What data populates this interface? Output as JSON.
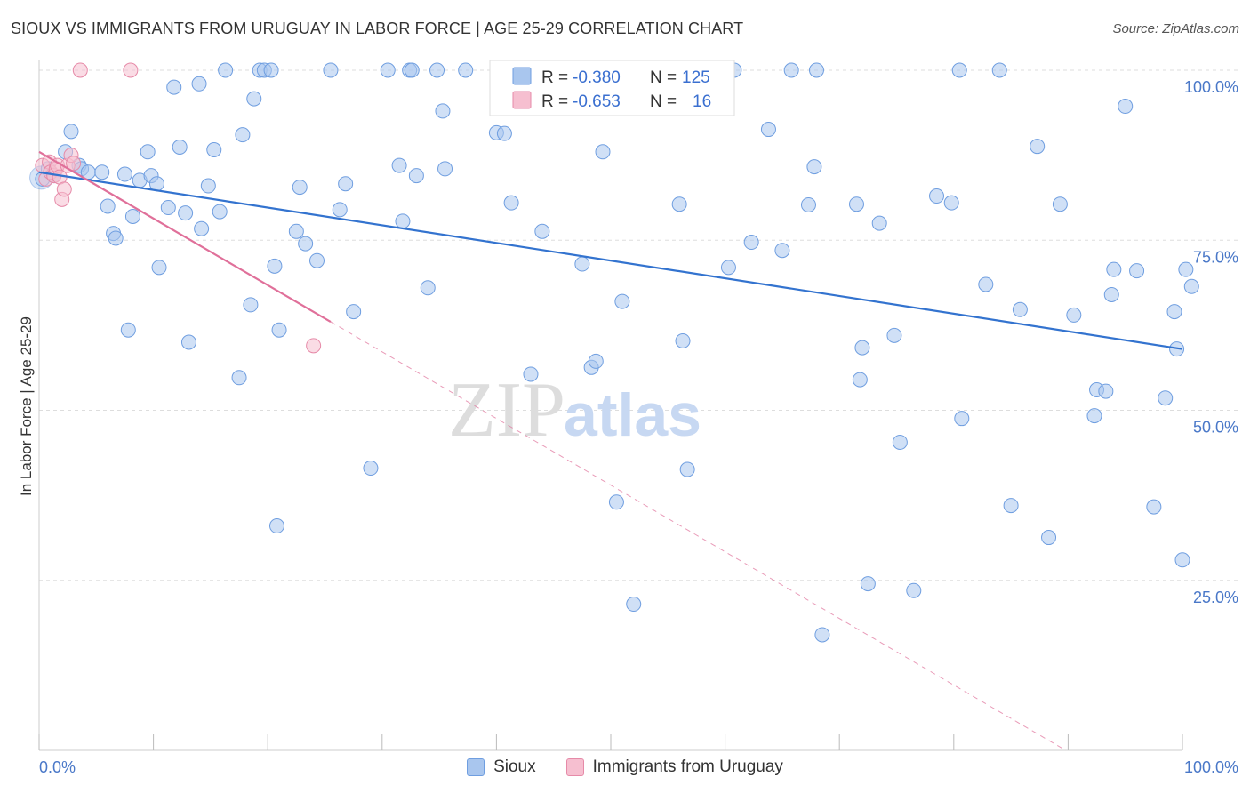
{
  "title": "SIOUX VS IMMIGRANTS FROM URUGUAY IN LABOR FORCE | AGE 25-29 CORRELATION CHART",
  "source": "Source: ZipAtlas.com",
  "watermark": {
    "zip": "ZIP",
    "atlas": "atlas"
  },
  "colors": {
    "blue_fill": "#a9c6ee",
    "blue_stroke": "#6f9ee0",
    "blue_line": "#3373cf",
    "pink_fill": "#f6bfd0",
    "pink_stroke": "#e68aa8",
    "pink_line": "#e0709a",
    "grid": "#dddddd",
    "tick_text": "#4a78c8"
  },
  "stats_box": {
    "rows": [
      {
        "r_label": "R =",
        "r_value": "-0.380",
        "n_label": "N =",
        "n_value": "125"
      },
      {
        "r_label": "R =",
        "r_value": "-0.653",
        "n_label": "N =",
        "n_value": "16"
      }
    ]
  },
  "legend": {
    "items": [
      "Sioux",
      "Immigrants from Uruguay"
    ]
  },
  "chart_data": {
    "type": "scatter",
    "title": "SIOUX VS IMMIGRANTS FROM URUGUAY IN LABOR FORCE | AGE 25-29 CORRELATION CHART",
    "xlabel": "",
    "ylabel": "In Labor Force | Age 25-29",
    "xlim": [
      0,
      100
    ],
    "ylim": [
      0,
      104.5
    ],
    "x_tick_labels": [
      "0.0%",
      "100.0%"
    ],
    "y_ticks": [
      {
        "value": 100,
        "label": "100.0%"
      },
      {
        "value": 75,
        "label": "75.0%"
      },
      {
        "value": 50,
        "label": "50.0%"
      },
      {
        "value": 25,
        "label": "25.0%"
      }
    ],
    "grid": true,
    "legend_position": "bottom",
    "series": [
      {
        "name": "Sioux",
        "trend": {
          "x": [
            0,
            100
          ],
          "y": [
            85.0,
            59.0
          ]
        },
        "points": [
          [
            0.3,
            84.0
          ],
          [
            0.8,
            85.5
          ],
          [
            1.3,
            84.5
          ],
          [
            2.3,
            88.0
          ],
          [
            2.8,
            91.0
          ],
          [
            3.5,
            86.0
          ],
          [
            3.7,
            85.5
          ],
          [
            4.3,
            85.0
          ],
          [
            5.5,
            85.0
          ],
          [
            6.0,
            80.0
          ],
          [
            6.5,
            76.0
          ],
          [
            6.7,
            75.3
          ],
          [
            7.5,
            84.7
          ],
          [
            7.8,
            61.8
          ],
          [
            8.2,
            78.5
          ],
          [
            8.8,
            83.8
          ],
          [
            9.5,
            88.0
          ],
          [
            9.8,
            84.5
          ],
          [
            10.3,
            83.3
          ],
          [
            10.5,
            71.0
          ],
          [
            11.3,
            79.8
          ],
          [
            11.8,
            97.5
          ],
          [
            12.3,
            88.7
          ],
          [
            12.8,
            79.0
          ],
          [
            13.1,
            60.0
          ],
          [
            14.0,
            98.0
          ],
          [
            14.2,
            76.7
          ],
          [
            14.8,
            83.0
          ],
          [
            15.3,
            88.3
          ],
          [
            15.8,
            79.2
          ],
          [
            16.3,
            100.0
          ],
          [
            17.5,
            54.8
          ],
          [
            17.8,
            90.5
          ],
          [
            18.5,
            65.5
          ],
          [
            18.8,
            95.8
          ],
          [
            19.3,
            100.0
          ],
          [
            19.7,
            100.0
          ],
          [
            20.3,
            100.0
          ],
          [
            20.6,
            71.2
          ],
          [
            20.8,
            33.0
          ],
          [
            21.0,
            61.8
          ],
          [
            22.5,
            76.3
          ],
          [
            22.8,
            82.8
          ],
          [
            23.3,
            74.5
          ],
          [
            24.3,
            72.0
          ],
          [
            25.5,
            100.0
          ],
          [
            26.3,
            79.5
          ],
          [
            26.8,
            83.3
          ],
          [
            27.5,
            64.5
          ],
          [
            29.0,
            41.5
          ],
          [
            30.5,
            100.0
          ],
          [
            31.5,
            86.0
          ],
          [
            31.8,
            77.8
          ],
          [
            32.4,
            100.0
          ],
          [
            32.6,
            100.0
          ],
          [
            33.0,
            84.5
          ],
          [
            34.0,
            68.0
          ],
          [
            34.8,
            100.0
          ],
          [
            35.3,
            94.0
          ],
          [
            35.5,
            85.5
          ],
          [
            37.3,
            100.0
          ],
          [
            40.0,
            90.8
          ],
          [
            40.7,
            90.7
          ],
          [
            41.3,
            80.5
          ],
          [
            43.0,
            55.3
          ],
          [
            44.0,
            76.3
          ],
          [
            47.5,
            71.5
          ],
          [
            48.3,
            56.3
          ],
          [
            48.7,
            57.2
          ],
          [
            49.3,
            88.0
          ],
          [
            50.3,
            100.0
          ],
          [
            50.5,
            36.5
          ],
          [
            51.0,
            66.0
          ],
          [
            52.0,
            21.5
          ],
          [
            56.0,
            80.3
          ],
          [
            56.3,
            60.2
          ],
          [
            56.7,
            41.3
          ],
          [
            57.0,
            100.0
          ],
          [
            57.3,
            100.0
          ],
          [
            60.3,
            71.0
          ],
          [
            60.8,
            100.0
          ],
          [
            62.3,
            74.7
          ],
          [
            63.8,
            91.3
          ],
          [
            65.0,
            73.5
          ],
          [
            65.8,
            100.0
          ],
          [
            67.3,
            80.2
          ],
          [
            67.8,
            85.8
          ],
          [
            68.0,
            100.0
          ],
          [
            68.5,
            17.0
          ],
          [
            71.5,
            80.3
          ],
          [
            71.8,
            54.5
          ],
          [
            72.0,
            59.2
          ],
          [
            72.5,
            24.5
          ],
          [
            73.5,
            77.5
          ],
          [
            74.8,
            61.0
          ],
          [
            75.3,
            45.3
          ],
          [
            76.5,
            23.5
          ],
          [
            78.5,
            81.5
          ],
          [
            79.8,
            80.5
          ],
          [
            80.5,
            100.0
          ],
          [
            80.7,
            48.8
          ],
          [
            82.8,
            68.5
          ],
          [
            84.0,
            100.0
          ],
          [
            85.0,
            36.0
          ],
          [
            85.8,
            64.8
          ],
          [
            87.3,
            88.8
          ],
          [
            88.3,
            31.3
          ],
          [
            89.3,
            80.3
          ],
          [
            90.5,
            64.0
          ],
          [
            92.3,
            49.2
          ],
          [
            92.5,
            53.0
          ],
          [
            93.3,
            52.8
          ],
          [
            93.8,
            67.0
          ],
          [
            94.0,
            70.7
          ],
          [
            95.0,
            94.7
          ],
          [
            96.0,
            70.5
          ],
          [
            97.5,
            35.8
          ],
          [
            98.5,
            51.8
          ],
          [
            99.3,
            64.5
          ],
          [
            99.5,
            59.0
          ],
          [
            100.0,
            28.0
          ],
          [
            100.3,
            70.7
          ],
          [
            100.8,
            68.2
          ]
        ]
      },
      {
        "name": "Immigrants from Uruguay",
        "trend": {
          "x": [
            0,
            25.5
          ],
          "y": [
            88.0,
            63.0
          ]
        },
        "trend_extension": {
          "x": [
            25.5,
            100
          ],
          "y": [
            63.0,
            -10.0
          ]
        },
        "points": [
          [
            0.3,
            86.0
          ],
          [
            0.6,
            84.0
          ],
          [
            0.9,
            86.5
          ],
          [
            1.0,
            85.0
          ],
          [
            1.3,
            84.5
          ],
          [
            1.5,
            85.5
          ],
          [
            1.6,
            86.0
          ],
          [
            1.8,
            84.3
          ],
          [
            2.0,
            81.0
          ],
          [
            2.2,
            82.5
          ],
          [
            2.5,
            86.0
          ],
          [
            2.8,
            87.5
          ],
          [
            3.0,
            86.3
          ],
          [
            3.6,
            100.0
          ],
          [
            8.0,
            100.0
          ],
          [
            24.0,
            59.5
          ]
        ]
      }
    ]
  }
}
